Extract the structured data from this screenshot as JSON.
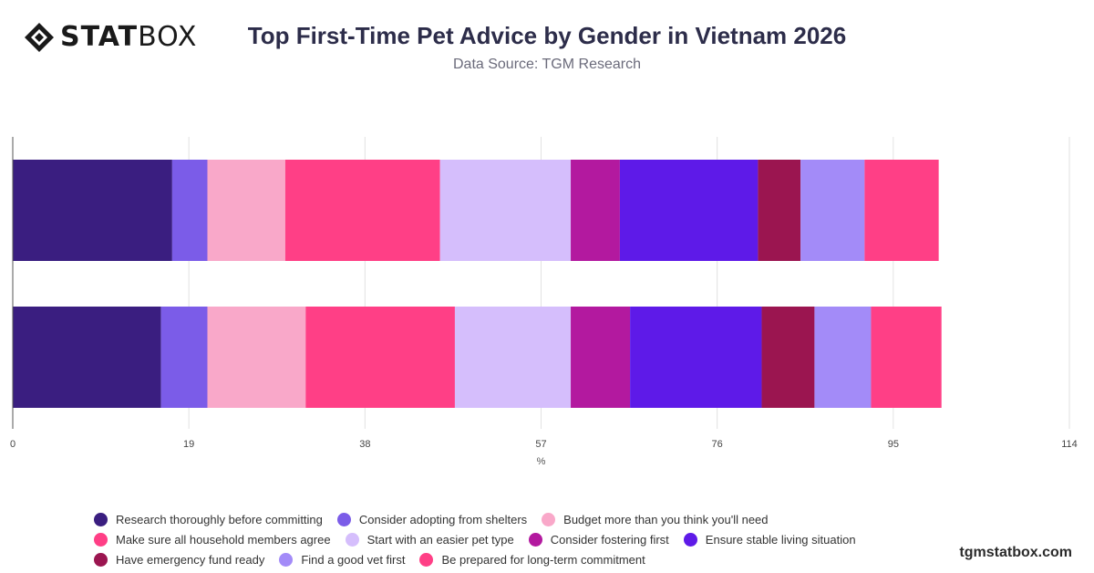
{
  "brand": {
    "logo_bold": "STAT",
    "logo_light": "BOX",
    "footer": "tgmstatbox.com"
  },
  "chart_data": {
    "type": "bar",
    "orientation": "horizontal",
    "stacked": true,
    "title": "Top First-Time Pet Advice by Gender in Vietnam 2026",
    "subtitle": "Data Source: TGM Research",
    "xlabel": "%",
    "ylabel": "",
    "xlim": [
      0,
      114
    ],
    "xticks": [
      0,
      19,
      38,
      57,
      76,
      95,
      114
    ],
    "grid": true,
    "legend_position": "bottom",
    "categories": [
      "",
      ""
    ],
    "series": [
      {
        "name": "Research thoroughly before committing",
        "color": "#3a1e80",
        "values": [
          17.2,
          16.0
        ]
      },
      {
        "name": "Consider adopting from shelters",
        "color": "#7b5ce8",
        "values": [
          3.8,
          5.0
        ]
      },
      {
        "name": "Budget more than you think you'll need",
        "color": "#f9a8c9",
        "values": [
          8.4,
          10.6
        ]
      },
      {
        "name": "Make sure all household members agree",
        "color": "#ff3f86",
        "values": [
          16.7,
          16.1
        ]
      },
      {
        "name": "Start with an easier pet type",
        "color": "#d5befc",
        "values": [
          14.1,
          12.5
        ]
      },
      {
        "name": "Consider fostering first",
        "color": "#b3199f",
        "values": [
          5.3,
          6.4
        ]
      },
      {
        "name": "Ensure stable living situation",
        "color": "#5e1ae8",
        "values": [
          14.9,
          14.2
        ]
      },
      {
        "name": "Have emergency fund ready",
        "color": "#9b1550",
        "values": [
          4.6,
          5.7
        ]
      },
      {
        "name": "Find a good vet first",
        "color": "#a38bf8",
        "values": [
          6.9,
          6.1
        ]
      },
      {
        "name": "Be prepared for long-term commitment",
        "color": "#ff3f86",
        "values": [
          8.0,
          7.6
        ]
      }
    ]
  }
}
